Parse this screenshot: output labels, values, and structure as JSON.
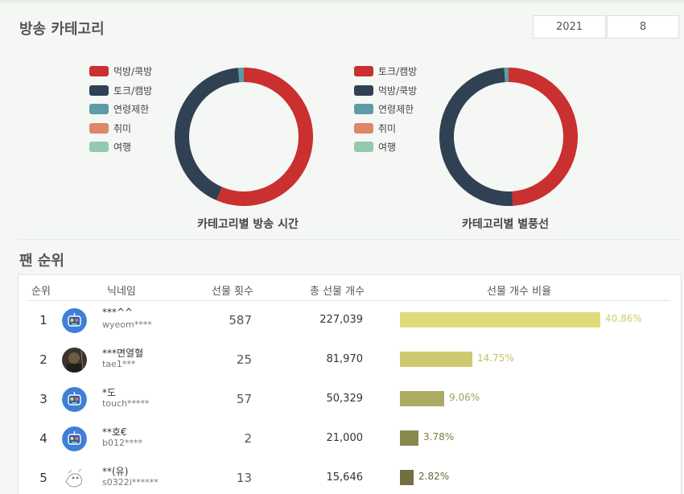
{
  "header": {
    "category_title": "방송 카테고리",
    "year": "2021",
    "month": "8"
  },
  "charts": {
    "broadcast_time": {
      "caption": "카테고리별 방송 시간",
      "legend": [
        {
          "label": "먹방/쿡방",
          "color": "#c9302f"
        },
        {
          "label": "토크/캠방",
          "color": "#2f4153"
        },
        {
          "label": "연령제한",
          "color": "#5d9ba6"
        },
        {
          "label": "취미",
          "color": "#de8769"
        },
        {
          "label": "여행",
          "color": "#94c9b0"
        }
      ]
    },
    "star_balloons": {
      "caption": "카테고리별 별풍선",
      "legend": [
        {
          "label": "토크/캠방",
          "color": "#c9302f"
        },
        {
          "label": "먹방/쿡방",
          "color": "#2f4153"
        },
        {
          "label": "연령제한",
          "color": "#5d9ba6"
        },
        {
          "label": "취미",
          "color": "#de8769"
        },
        {
          "label": "여행",
          "color": "#94c9b0"
        }
      ]
    }
  },
  "chart_data": [
    {
      "type": "pie",
      "title": "카테고리별 방송 시간",
      "categories": [
        "먹방/쿡방",
        "토크/캠방",
        "연령제한",
        "취미",
        "여행"
      ],
      "values": [
        56.5,
        42.2,
        1.3,
        0,
        0
      ],
      "colors": [
        "#c9302f",
        "#2f4153",
        "#5d9ba6",
        "#de8769",
        "#94c9b0"
      ]
    },
    {
      "type": "pie",
      "title": "카테고리별 별풍선",
      "categories": [
        "토크/캠방",
        "먹방/쿡방",
        "연령제한",
        "취미",
        "여행"
      ],
      "values": [
        49.0,
        50.0,
        1.0,
        0,
        0
      ],
      "colors": [
        "#c9302f",
        "#2f4153",
        "#5d9ba6",
        "#de8769",
        "#94c9b0"
      ]
    }
  ],
  "fan_ranking": {
    "title": "팬 순위",
    "columns": {
      "rank": "순위",
      "nickname": "닉네임",
      "gift_count": "선물 횟수",
      "total_gifts": "총 선물 개수",
      "ratio": "선물 개수 비율"
    },
    "rows": [
      {
        "rank": "1",
        "nick": "***^^",
        "uid": "wyeom****",
        "count": "587",
        "total": "227,039",
        "pct": "40.86%",
        "ratio": 40.86,
        "bar_color": "#dfdd7b",
        "pct_color": "#cfcd6e",
        "avatar": "robot"
      },
      {
        "rank": "2",
        "nick": "***면열혈",
        "uid": "tae1***",
        "count": "25",
        "total": "81,970",
        "pct": "14.75%",
        "ratio": 14.75,
        "bar_color": "#cdc96e",
        "pct_color": "#c3bf62",
        "avatar": "photo"
      },
      {
        "rank": "3",
        "nick": "*도",
        "uid": "touch*****",
        "count": "57",
        "total": "50,329",
        "pct": "9.06%",
        "ratio": 9.06,
        "bar_color": "#adab62",
        "pct_color": "#a3a158",
        "avatar": "robot"
      },
      {
        "rank": "4",
        "nick": "**호€",
        "uid": "b012****",
        "count": "2",
        "total": "21,000",
        "pct": "3.78%",
        "ratio": 3.78,
        "bar_color": "#8a884c",
        "pct_color": "#7e7c44",
        "avatar": "robot"
      },
      {
        "rank": "5",
        "nick": "**(유)",
        "uid": "s0322i******",
        "count": "13",
        "total": "15,646",
        "pct": "2.82%",
        "ratio": 2.82,
        "bar_color": "#727041",
        "pct_color": "#686638",
        "avatar": "sketch"
      }
    ]
  }
}
